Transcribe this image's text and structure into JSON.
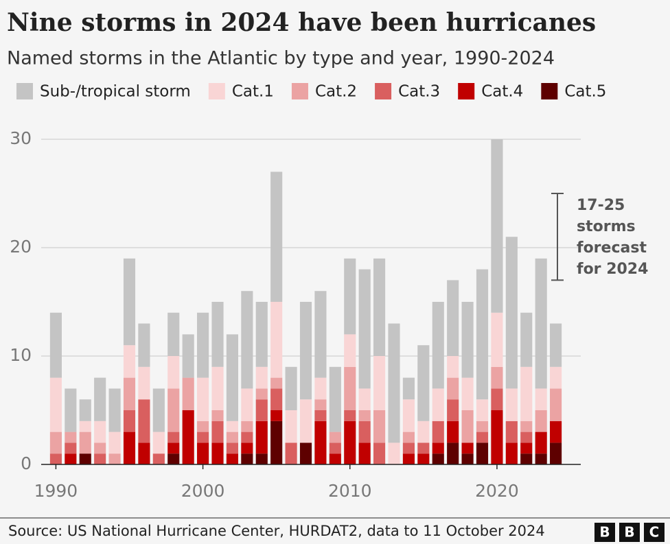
{
  "chart_data": {
    "type": "stacked_bar",
    "title": "Nine storms in 2024 have been hurricanes",
    "subtitle": "Named storms in the Atlantic by type and year, 1990-2024",
    "x": [
      1990,
      1991,
      1992,
      1993,
      1994,
      1995,
      1996,
      1997,
      1998,
      1999,
      2000,
      2001,
      2002,
      2003,
      2004,
      2005,
      2006,
      2007,
      2008,
      2009,
      2010,
      2011,
      2012,
      2013,
      2014,
      2015,
      2016,
      2017,
      2018,
      2019,
      2020,
      2021,
      2022,
      2023,
      2024
    ],
    "series": [
      {
        "name": "Sub-/tropical storm",
        "color": "#c4c4c4",
        "values": [
          6,
          4,
          2,
          4,
          4,
          8,
          4,
          4,
          4,
          4,
          6,
          6,
          8,
          9,
          6,
          12,
          4,
          9,
          8,
          6,
          7,
          11,
          9,
          11,
          2,
          7,
          8,
          7,
          7,
          12,
          16,
          14,
          5,
          12,
          4
        ]
      },
      {
        "name": "Cat.1",
        "color": "#f9d5d5",
        "values": [
          5,
          0,
          1,
          2,
          2,
          3,
          3,
          2,
          3,
          0,
          4,
          4,
          1,
          3,
          2,
          7,
          3,
          4,
          2,
          0,
          3,
          2,
          5,
          2,
          3,
          2,
          3,
          2,
          3,
          2,
          5,
          3,
          5,
          2,
          2
        ]
      },
      {
        "name": "Cat.2",
        "color": "#eba3a3",
        "values": [
          2,
          1,
          2,
          1,
          1,
          3,
          0,
          0,
          4,
          3,
          1,
          1,
          1,
          1,
          1,
          1,
          0,
          0,
          1,
          1,
          4,
          1,
          3,
          0,
          1,
          0,
          0,
          2,
          3,
          1,
          2,
          0,
          1,
          2,
          3
        ]
      },
      {
        "name": "Cat.3",
        "color": "#d95f5f",
        "values": [
          1,
          1,
          0,
          1,
          0,
          2,
          4,
          1,
          1,
          0,
          1,
          2,
          1,
          1,
          2,
          2,
          2,
          0,
          1,
          1,
          1,
          2,
          2,
          0,
          1,
          1,
          2,
          2,
          0,
          1,
          2,
          2,
          1,
          0,
          0
        ]
      },
      {
        "name": "Cat.4",
        "color": "#c00000",
        "values": [
          0,
          1,
          0,
          0,
          0,
          3,
          2,
          0,
          1,
          5,
          2,
          2,
          1,
          1,
          3,
          1,
          0,
          0,
          4,
          1,
          4,
          2,
          0,
          0,
          1,
          1,
          1,
          2,
          1,
          0,
          5,
          2,
          1,
          2,
          2
        ]
      },
      {
        "name": "Cat.5",
        "color": "#5e0000",
        "values": [
          0,
          0,
          1,
          0,
          0,
          0,
          0,
          0,
          1,
          0,
          0,
          0,
          0,
          1,
          1,
          4,
          0,
          2,
          0,
          0,
          0,
          0,
          0,
          0,
          0,
          0,
          1,
          2,
          1,
          2,
          0,
          0,
          1,
          1,
          2
        ]
      }
    ],
    "xlim": [
      1989,
      2025.7
    ],
    "xticks": [
      1990,
      2000,
      2010,
      2020
    ],
    "ylim": [
      0,
      30
    ],
    "yticks": [
      0,
      10,
      20,
      30
    ],
    "grid": true,
    "forecast": {
      "range": [
        17,
        25
      ],
      "lines": [
        "17-25",
        "storms",
        "forecast",
        "for 2024"
      ]
    },
    "source": "Source: US National Hurricane Center, HURDAT2, data to 11 October 2024",
    "logo": "BBC"
  }
}
